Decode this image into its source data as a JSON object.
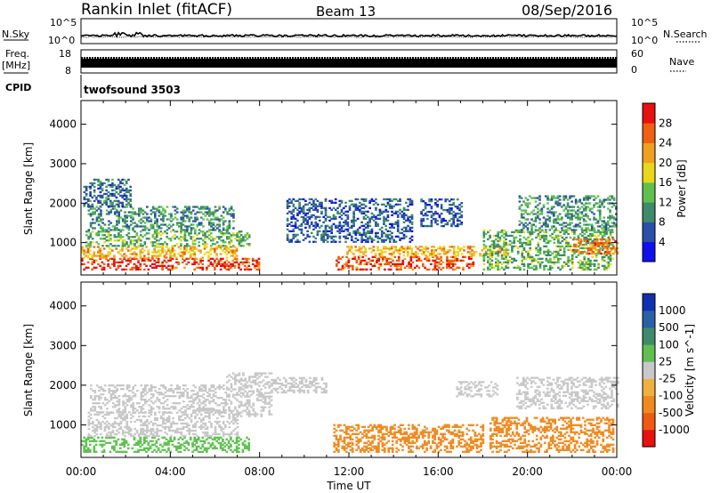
{
  "header": {
    "station": "Rankin Inlet (fitACF)",
    "beam": "Beam 13",
    "date": "08/Sep/2016"
  },
  "panels": {
    "nsky_label": "N.Sky",
    "nsky_ticks": [
      "10^5",
      "10^0"
    ],
    "nsearch_label": "N.Search",
    "nsearch_ticks": [
      "10^5",
      "10^0"
    ],
    "freq_label": "Freq.",
    "freq_unit": "[MHz]",
    "freq_ticks": [
      "18",
      "8"
    ],
    "nave_label": "Nave",
    "nave_ticks": [
      "60",
      "0"
    ],
    "cpid_label": "CPID",
    "cpid_value": "twofsound 3503"
  },
  "colors": {
    "power": [
      "#1010ee",
      "#2a4fa8",
      "#3f8a6a",
      "#5fc050",
      "#e8d818",
      "#f0a020",
      "#f06010",
      "#e81010"
    ],
    "velocity": [
      "#e81010",
      "#f05a10",
      "#f08a20",
      "#f0b040",
      "#c8c8c8",
      "#5fc050",
      "#3f8a6a",
      "#2a60a8",
      "#1030b0"
    ]
  },
  "chart_data": [
    {
      "type": "heatmap",
      "panel": "power",
      "xlabel": "",
      "ylabel": "Slant Range [km]",
      "yticks": [
        "1000",
        "2000",
        "3000",
        "4000"
      ],
      "ylim": [
        180,
        4600
      ],
      "xlim_hours": [
        0,
        24
      ],
      "colorbar": {
        "label": "Power [dB]",
        "ticks": [
          "4",
          "8",
          "12",
          "16",
          "20",
          "24",
          "28"
        ],
        "range": [
          0,
          32
        ]
      },
      "regions": [
        {
          "t": [
            0.0,
            8.0
          ],
          "r": [
            300,
            600
          ],
          "value": 28
        },
        {
          "t": [
            0.0,
            7.0
          ],
          "r": [
            600,
            900
          ],
          "value": 21
        },
        {
          "t": [
            0.2,
            7.5
          ],
          "r": [
            900,
            1300
          ],
          "value": 13
        },
        {
          "t": [
            0.3,
            6.8
          ],
          "r": [
            1300,
            1900
          ],
          "value": 10
        },
        {
          "t": [
            0.1,
            2.2
          ],
          "r": [
            1900,
            2600
          ],
          "value": 8
        },
        {
          "t": [
            11.4,
            17.6
          ],
          "r": [
            300,
            650
          ],
          "value": 27
        },
        {
          "t": [
            11.8,
            19.0
          ],
          "r": [
            650,
            900
          ],
          "value": 21
        },
        {
          "t": [
            9.2,
            14.8
          ],
          "r": [
            1000,
            2100
          ],
          "value": 7
        },
        {
          "t": [
            15.2,
            17.0
          ],
          "r": [
            1400,
            2100
          ],
          "value": 7
        },
        {
          "t": [
            18.0,
            23.8
          ],
          "r": [
            300,
            1300
          ],
          "value": 13
        },
        {
          "t": [
            19.6,
            24.0
          ],
          "r": [
            1300,
            2200
          ],
          "value": 11
        },
        {
          "t": [
            22.0,
            24.0
          ],
          "r": [
            700,
            1100
          ],
          "value": 24
        }
      ]
    },
    {
      "type": "heatmap",
      "panel": "velocity",
      "xlabel": "Time UT",
      "xticks": [
        "00:00",
        "04:00",
        "08:00",
        "12:00",
        "16:00",
        "20:00",
        "00:00"
      ],
      "ylabel": "Slant Range [km]",
      "yticks": [
        "1000",
        "2000",
        "3000",
        "4000"
      ],
      "ylim": [
        180,
        4600
      ],
      "xlim_hours": [
        0,
        24
      ],
      "colorbar": {
        "label": "Velocity [m s^-1]",
        "ticks": [
          "1000",
          "500",
          "100",
          "25",
          "-25",
          "-100",
          "-500",
          "-1000"
        ],
        "range": [
          -1200,
          1200
        ]
      },
      "regions": [
        {
          "t": [
            0.0,
            7.5
          ],
          "r": [
            300,
            700
          ],
          "value": 60
        },
        {
          "t": [
            0.3,
            7.0
          ],
          "r": [
            700,
            1300
          ],
          "value": 0
        },
        {
          "t": [
            0.4,
            6.5
          ],
          "r": [
            1300,
            2000
          ],
          "value": 10
        },
        {
          "t": [
            6.5,
            8.5
          ],
          "r": [
            1200,
            2300
          ],
          "value": 0
        },
        {
          "t": [
            11.3,
            18.0
          ],
          "r": [
            300,
            1000
          ],
          "value": -90
        },
        {
          "t": [
            8.5,
            11.0
          ],
          "r": [
            1800,
            2200
          ],
          "value": 5
        },
        {
          "t": [
            18.3,
            23.8
          ],
          "r": [
            300,
            1200
          ],
          "value": -70
        },
        {
          "t": [
            19.5,
            24.0
          ],
          "r": [
            1400,
            2200
          ],
          "value": 0
        },
        {
          "t": [
            16.8,
            18.6
          ],
          "r": [
            1700,
            2100
          ],
          "value": 0
        }
      ]
    }
  ]
}
